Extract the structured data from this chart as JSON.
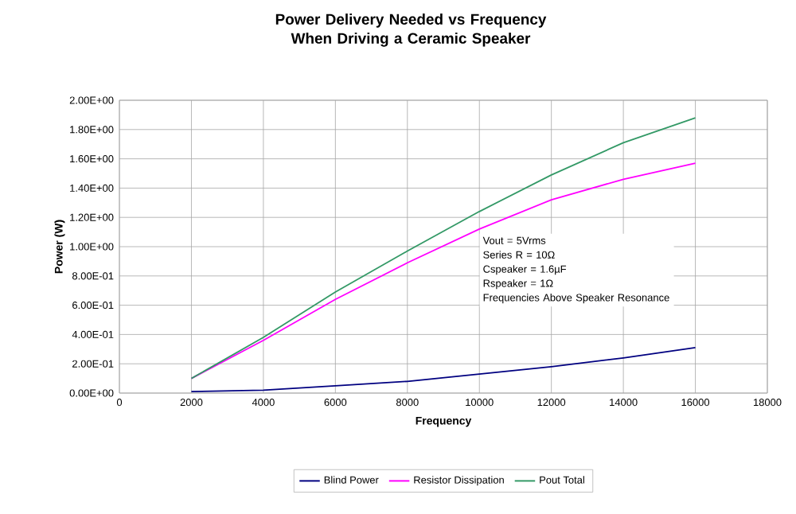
{
  "chart_data": {
    "type": "line",
    "title": "Power Delivery Needed vs Frequency When Driving a Ceramic Speaker",
    "xlabel": "Frequency",
    "ylabel": "Power (W)",
    "x": [
      2000,
      4000,
      6000,
      8000,
      10000,
      12000,
      14000,
      16000
    ],
    "series": [
      {
        "name": "Blind Power",
        "color": "#000080",
        "values": [
          0.01,
          0.02,
          0.05,
          0.08,
          0.13,
          0.18,
          0.24,
          0.31
        ]
      },
      {
        "name": "Resistor Dissipation",
        "color": "#ff00ff",
        "values": [
          0.1,
          0.36,
          0.64,
          0.89,
          1.12,
          1.32,
          1.46,
          1.57
        ]
      },
      {
        "name": "Pout Total",
        "color": "#339966",
        "values": [
          0.1,
          0.38,
          0.69,
          0.97,
          1.24,
          1.49,
          1.71,
          1.88
        ]
      }
    ],
    "xlim": [
      0,
      18000
    ],
    "xticks": [
      0,
      2000,
      4000,
      6000,
      8000,
      10000,
      12000,
      14000,
      16000,
      18000
    ],
    "ylim": [
      0,
      2
    ],
    "yticks": [
      {
        "value": 0,
        "label": "0.00E+00"
      },
      {
        "value": 0.2,
        "label": "2.00E-01"
      },
      {
        "value": 0.4,
        "label": "4.00E-01"
      },
      {
        "value": 0.6,
        "label": "6.00E-01"
      },
      {
        "value": 0.8,
        "label": "8.00E-01"
      },
      {
        "value": 1.0,
        "label": "1.00E+00"
      },
      {
        "value": 1.2,
        "label": "1.20E+00"
      },
      {
        "value": 1.4,
        "label": "1.40E+00"
      },
      {
        "value": 1.6,
        "label": "1.60E+00"
      },
      {
        "value": 1.8,
        "label": "1.80E+00"
      },
      {
        "value": 2.0,
        "label": "2.00E+00"
      }
    ],
    "annotations": [
      "Vout = 5Vrms",
      "Series R = 10Ω",
      "Cspeaker = 1.6µF",
      "Rspeaker = 1Ω",
      "Frequencies Above Speaker Resonance"
    ],
    "grid": true,
    "legend": "bottom",
    "marker": "none",
    "line_style": "solid"
  }
}
